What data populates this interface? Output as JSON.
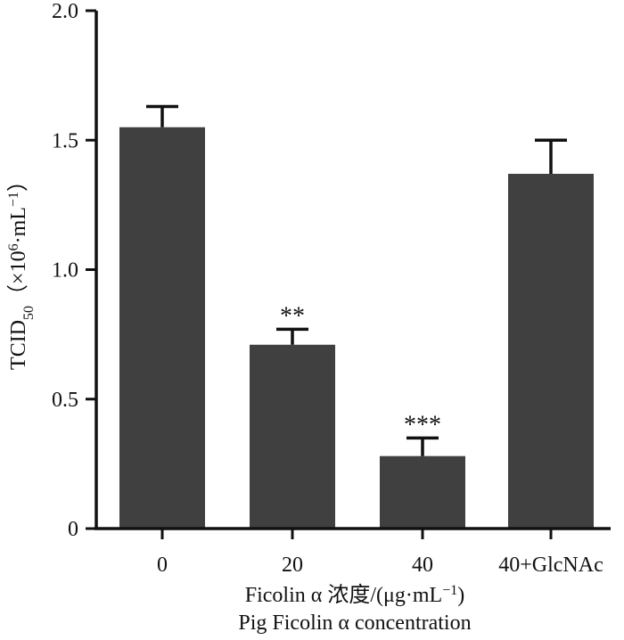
{
  "chart_data": {
    "type": "bar",
    "categories": [
      "0",
      "20",
      "40",
      "40+GlcNAc"
    ],
    "values": [
      1.55,
      0.71,
      0.28,
      1.37
    ],
    "errors": [
      0.08,
      0.06,
      0.07,
      0.13
    ],
    "significance": [
      "",
      "**",
      "***",
      ""
    ],
    "ylim": [
      0,
      2.0
    ],
    "yticks": [
      0,
      0.5,
      1.0,
      1.5,
      2.0
    ],
    "ytick_labels": [
      "0",
      "0.5",
      "1.0",
      "1.5",
      "2.0"
    ],
    "ylabel": {
      "main": "TCID",
      "sub": "50",
      "paren_open": "（×10",
      "exp": "6",
      "mid": "·mL",
      "exp2": "−1",
      "paren_close": "）"
    },
    "xlabel_line1": {
      "main": "Ficolin α 浓度/(μg·mL",
      "exp": "−1",
      "close": ")"
    },
    "xlabel_line2": "Pig Ficolin α concentration",
    "bar_color": "#404040",
    "grid": false
  }
}
